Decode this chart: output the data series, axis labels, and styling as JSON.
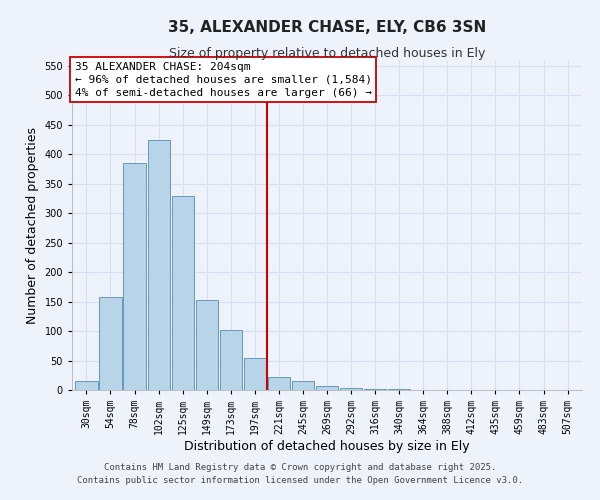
{
  "title": "35, ALEXANDER CHASE, ELY, CB6 3SN",
  "subtitle": "Size of property relative to detached houses in Ely",
  "xlabel": "Distribution of detached houses by size in Ely",
  "ylabel": "Number of detached properties",
  "bar_labels": [
    "30sqm",
    "54sqm",
    "78sqm",
    "102sqm",
    "125sqm",
    "149sqm",
    "173sqm",
    "197sqm",
    "221sqm",
    "245sqm",
    "269sqm",
    "292sqm",
    "316sqm",
    "340sqm",
    "364sqm",
    "388sqm",
    "412sqm",
    "435sqm",
    "459sqm",
    "483sqm",
    "507sqm"
  ],
  "bar_values": [
    15,
    157,
    385,
    425,
    329,
    153,
    102,
    55,
    22,
    15,
    7,
    3,
    1,
    1,
    0,
    0,
    0,
    0,
    0,
    0,
    0
  ],
  "bar_color": "#b8d4e8",
  "bar_edge_color": "#6699bb",
  "vline_x": 7.5,
  "vline_color": "#cc0000",
  "ylim": [
    0,
    560
  ],
  "yticks": [
    0,
    50,
    100,
    150,
    200,
    250,
    300,
    350,
    400,
    450,
    500,
    550
  ],
  "annotation_title": "35 ALEXANDER CHASE: 204sqm",
  "annotation_line1": "← 96% of detached houses are smaller (1,584)",
  "annotation_line2": "4% of semi-detached houses are larger (66) →",
  "footnote1": "Contains HM Land Registry data © Crown copyright and database right 2025.",
  "footnote2": "Contains public sector information licensed under the Open Government Licence v3.0.",
  "bg_color": "#eef2fb",
  "grid_color": "#d8dff0",
  "title_fontsize": 11,
  "subtitle_fontsize": 9,
  "axis_label_fontsize": 9,
  "tick_fontsize": 7,
  "annotation_fontsize": 8,
  "footnote_fontsize": 6.5
}
